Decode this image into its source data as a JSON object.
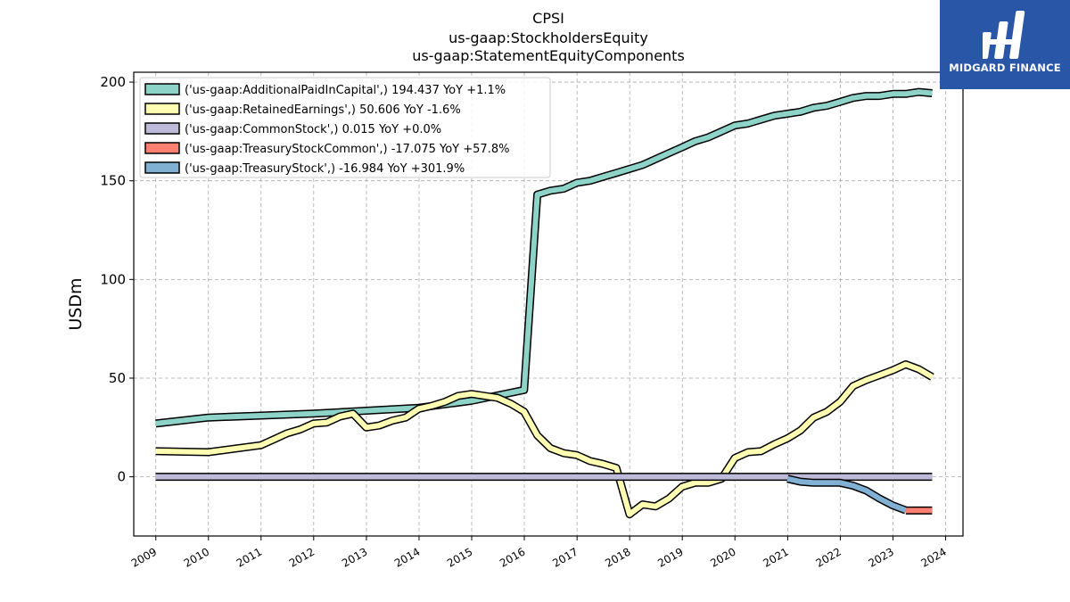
{
  "chart_data": {
    "type": "line",
    "title": [
      "CPSI",
      "us-gaap:StockholdersEquity",
      "us-gaap:StatementEquityComponents"
    ],
    "ylabel": "USDm",
    "xlabel": "",
    "ylim": [
      -30,
      205
    ],
    "yticks": [
      0,
      50,
      100,
      150,
      200
    ],
    "xlim": [
      "2008-08-01",
      "2024-05-01"
    ],
    "xticks": [
      "2009",
      "2010",
      "2011",
      "2012",
      "2013",
      "2014",
      "2015",
      "2016",
      "2017",
      "2018",
      "2019",
      "2020",
      "2021",
      "2022",
      "2023",
      "2024"
    ],
    "grid": true,
    "legend_position": "upper-left",
    "series": [
      {
        "name": "('us-gaap:AdditionalPaidInCapital',) 194.437 YoY +1.1%",
        "color": "#8dd3c7",
        "points": [
          [
            "2008-12-31",
            27
          ],
          [
            "2009-12-31",
            30
          ],
          [
            "2010-12-31",
            31
          ],
          [
            "2011-12-31",
            32
          ],
          [
            "2012-12-31",
            33.5
          ],
          [
            "2013-12-31",
            35
          ],
          [
            "2014-12-31",
            38.5
          ],
          [
            "2015-12-31",
            44
          ],
          [
            "2016-03-31",
            143
          ],
          [
            "2016-06-30",
            145
          ],
          [
            "2016-09-30",
            146
          ],
          [
            "2016-12-31",
            149
          ],
          [
            "2017-03-31",
            150
          ],
          [
            "2017-06-30",
            152
          ],
          [
            "2017-09-30",
            154
          ],
          [
            "2017-12-31",
            156
          ],
          [
            "2018-03-31",
            158
          ],
          [
            "2018-06-30",
            161
          ],
          [
            "2018-09-30",
            164
          ],
          [
            "2018-12-31",
            167
          ],
          [
            "2019-03-31",
            170
          ],
          [
            "2019-06-30",
            172
          ],
          [
            "2019-09-30",
            175
          ],
          [
            "2019-12-31",
            178
          ],
          [
            "2020-03-31",
            179
          ],
          [
            "2020-06-30",
            181
          ],
          [
            "2020-09-30",
            183
          ],
          [
            "2020-12-31",
            184
          ],
          [
            "2021-03-31",
            185
          ],
          [
            "2021-06-30",
            187
          ],
          [
            "2021-09-30",
            188
          ],
          [
            "2021-12-31",
            190
          ],
          [
            "2022-03-31",
            192
          ],
          [
            "2022-06-30",
            193
          ],
          [
            "2022-09-30",
            193
          ],
          [
            "2022-12-31",
            194
          ],
          [
            "2023-03-31",
            194
          ],
          [
            "2023-06-30",
            195
          ],
          [
            "2023-09-30",
            194.4
          ]
        ]
      },
      {
        "name": "('us-gaap:RetainedEarnings',) 50.606 YoY -1.6%",
        "color": "#ffffb3",
        "points": [
          [
            "2008-12-31",
            13
          ],
          [
            "2009-12-31",
            12.5
          ],
          [
            "2010-12-31",
            16
          ],
          [
            "2011-03-31",
            19
          ],
          [
            "2011-06-30",
            22
          ],
          [
            "2011-09-30",
            24
          ],
          [
            "2011-12-31",
            27
          ],
          [
            "2012-03-31",
            27.5
          ],
          [
            "2012-06-30",
            30.5
          ],
          [
            "2012-09-30",
            32
          ],
          [
            "2012-12-31",
            25
          ],
          [
            "2013-03-31",
            26
          ],
          [
            "2013-06-30",
            28.5
          ],
          [
            "2013-09-30",
            30
          ],
          [
            "2013-12-31",
            34.5
          ],
          [
            "2014-03-31",
            36
          ],
          [
            "2014-06-30",
            38
          ],
          [
            "2014-09-30",
            41
          ],
          [
            "2014-12-31",
            42
          ],
          [
            "2015-03-31",
            41
          ],
          [
            "2015-06-30",
            40
          ],
          [
            "2015-09-30",
            37
          ],
          [
            "2015-12-31",
            33
          ],
          [
            "2016-03-31",
            21
          ],
          [
            "2016-06-30",
            14.5
          ],
          [
            "2016-09-30",
            12
          ],
          [
            "2016-12-31",
            11
          ],
          [
            "2017-03-31",
            8
          ],
          [
            "2017-06-30",
            6.5
          ],
          [
            "2017-09-30",
            4.5
          ],
          [
            "2017-12-31",
            -19
          ],
          [
            "2018-03-31",
            -14
          ],
          [
            "2018-06-30",
            -15
          ],
          [
            "2018-09-30",
            -11
          ],
          [
            "2018-12-31",
            -5
          ],
          [
            "2019-03-31",
            -3
          ],
          [
            "2019-06-30",
            -3
          ],
          [
            "2019-09-30",
            -1
          ],
          [
            "2019-12-31",
            9.5
          ],
          [
            "2020-03-31",
            12.5
          ],
          [
            "2020-06-30",
            13
          ],
          [
            "2020-09-30",
            16.5
          ],
          [
            "2020-12-31",
            19.5
          ],
          [
            "2021-03-31",
            23.5
          ],
          [
            "2021-06-30",
            30
          ],
          [
            "2021-09-30",
            33
          ],
          [
            "2021-12-31",
            38
          ],
          [
            "2022-03-31",
            46
          ],
          [
            "2022-06-30",
            49
          ],
          [
            "2022-09-30",
            51.5
          ],
          [
            "2022-12-31",
            54
          ],
          [
            "2023-03-31",
            57
          ],
          [
            "2023-06-30",
            54.5
          ],
          [
            "2023-09-30",
            50.6
          ]
        ]
      },
      {
        "name": "('us-gaap:CommonStock',) 0.015 YoY +0.0%",
        "color": "#bebada",
        "points": [
          [
            "2008-12-31",
            0.015
          ],
          [
            "2023-09-30",
            0.015
          ]
        ]
      },
      {
        "name": "('us-gaap:TreasuryStockCommon',) -17.075 YoY +57.8%",
        "color": "#fb8072",
        "points": [
          [
            "2023-03-31",
            -17.075
          ],
          [
            "2023-09-30",
            -17.075
          ]
        ]
      },
      {
        "name": "('us-gaap:TreasuryStock',) -16.984 YoY +301.9%",
        "color": "#80b1d3",
        "points": [
          [
            "2020-12-31",
            -1
          ],
          [
            "2021-03-31",
            -2.5
          ],
          [
            "2021-06-30",
            -3
          ],
          [
            "2021-09-30",
            -3
          ],
          [
            "2021-12-31",
            -3
          ],
          [
            "2022-03-31",
            -4.5
          ],
          [
            "2022-06-30",
            -7
          ],
          [
            "2022-09-30",
            -11
          ],
          [
            "2022-12-31",
            -14.5
          ],
          [
            "2023-03-31",
            -17
          ]
        ]
      }
    ]
  },
  "logo": {
    "text": "MIDGARD FINANCE",
    "background": "#2a56a8"
  }
}
